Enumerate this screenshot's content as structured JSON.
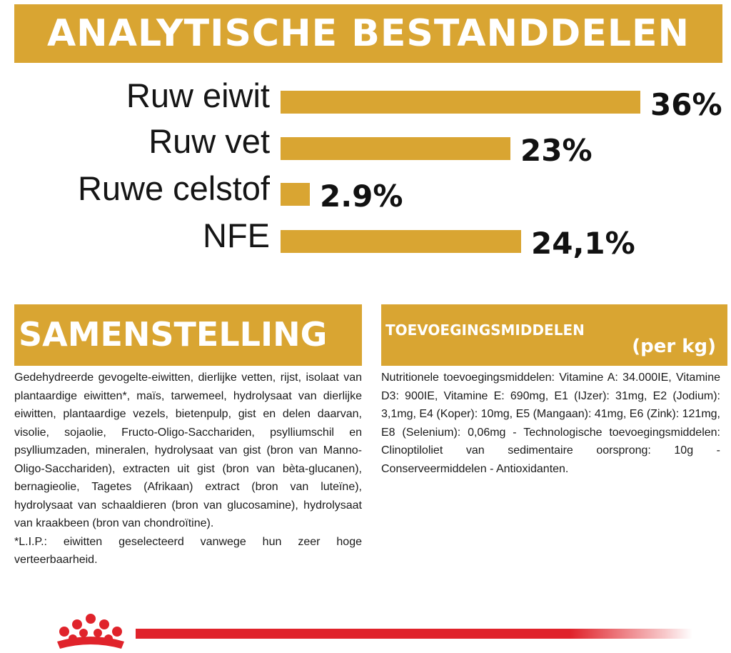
{
  "header": {
    "title": "ANALYTISCHE BESTANDDELEN"
  },
  "analysis": {
    "rows": [
      {
        "label": "Ruw eiwit",
        "value": 36,
        "display": "36%"
      },
      {
        "label": "Ruw vet",
        "value": 23,
        "display": "23%"
      },
      {
        "label": "Ruwe celstof",
        "value": 2.9,
        "display": "2.9%"
      },
      {
        "label": "NFE",
        "value": 24.1,
        "display": "24,1%"
      }
    ],
    "bar_color": "#d9a532"
  },
  "composition": {
    "title": "SAMENSTELLING",
    "text": "Gedehydreerde gevogelte-eiwitten, dierlijke vetten, rijst, isolaat van plantaardige eiwitten*, maïs, tarwemeel, hydrolysaat van dierlijke eiwitten, plantaardige vezels, bietenpulp, gist en delen daarvan, visolie, sojaolie, Fructo-Oligo-Sacchariden, psylliumschil en psylliumzaden, mineralen, hydrolysaat van gist (bron van Manno-Oligo-Sacchariden), extracten uit gist (bron van bèta-glucanen), bernagieolie, Tagetes (Afrikaan) extract (bron van luteïne), hydrolysaat van schaaldieren (bron van glucosamine), hydrolysaat van kraakbeen (bron van chondroïtine).",
    "footnote": "*L.I.P.: eiwitten geselecteerd vanwege hun zeer hoge verteerbaarheid."
  },
  "additives": {
    "title": "TOEVOEGINGSMIDDELEN",
    "unit": "(per kg)",
    "text": "Nutritionele toevoegingsmiddelen: Vitamine A: 34.000IE, Vitamine D3: 900IE, Vitamine E: 690mg, E1 (IJzer): 31mg, E2 (Jodium): 3,1mg, E4 (Koper): 10mg, E5 (Mangaan): 41mg, E6 (Zink): 121mg, E8 (Selenium): 0,06mg - Technologische toevoegingsmiddelen: Clinoptiloliet van sedimentaire oorsprong: 10g - Conserveermiddelen - Antioxidanten."
  },
  "footer": {
    "logo": "crown-logo-icon",
    "accent_color": "#e0232b"
  }
}
